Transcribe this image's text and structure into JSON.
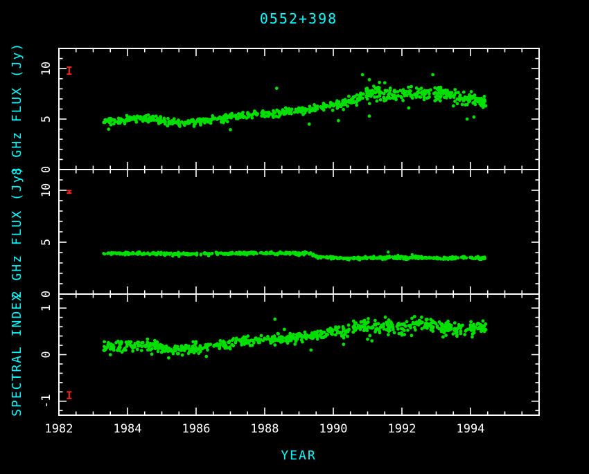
{
  "title": "0552+398",
  "x_axis": {
    "label": "YEAR",
    "lim": [
      1982,
      1996
    ],
    "major_ticks": [
      1982,
      1984,
      1986,
      1988,
      1990,
      1992,
      1994
    ],
    "minor_step": 0.5
  },
  "colors": {
    "background": "#000000",
    "frame": "#ffffff",
    "tick_text": "#ffffff",
    "axis_label": "#00ffff",
    "point": "#00e000",
    "error_bar": "#ff2222"
  },
  "chart_data": [
    {
      "id": "flux-8ghz",
      "type": "scatter",
      "title": "0552+398",
      "xlabel": "YEAR",
      "ylabel": "8 GHz FLUX (Jy)",
      "xlim": [
        1982,
        1996
      ],
      "ylim": [
        0,
        12
      ],
      "yticks": [
        0,
        5,
        10
      ],
      "minor_ytick_step": 1,
      "x_data_range": [
        1983.3,
        1994.45
      ],
      "n_points": 700,
      "point_radius": 2.4,
      "trend": [
        [
          1983.3,
          4.75
        ],
        [
          1983.8,
          4.9
        ],
        [
          1984.3,
          5.05
        ],
        [
          1984.8,
          5.05
        ],
        [
          1985.2,
          4.75
        ],
        [
          1985.7,
          4.65
        ],
        [
          1986.2,
          4.8
        ],
        [
          1986.7,
          5.0
        ],
        [
          1987.2,
          5.2
        ],
        [
          1987.7,
          5.45
        ],
        [
          1988.2,
          5.55
        ],
        [
          1988.7,
          5.7
        ],
        [
          1989.2,
          5.95
        ],
        [
          1989.7,
          6.2
        ],
        [
          1990.2,
          6.5
        ],
        [
          1990.6,
          6.9
        ],
        [
          1990.95,
          7.5
        ],
        [
          1991.3,
          7.6
        ],
        [
          1991.8,
          7.35
        ],
        [
          1992.3,
          7.5
        ],
        [
          1992.8,
          7.55
        ],
        [
          1993.3,
          7.45
        ],
        [
          1993.7,
          7.15
        ],
        [
          1994.1,
          6.85
        ],
        [
          1994.45,
          6.6
        ]
      ],
      "scatter_sigma": [
        [
          1983.3,
          0.17
        ],
        [
          1989.5,
          0.2
        ],
        [
          1990.8,
          0.28
        ],
        [
          1991.2,
          0.38
        ],
        [
          1992.5,
          0.33
        ],
        [
          1994.45,
          0.28
        ]
      ],
      "outliers": [
        [
          1983.45,
          4.0
        ],
        [
          1987.0,
          3.95
        ],
        [
          1988.35,
          8.05
        ],
        [
          1989.3,
          4.5
        ],
        [
          1990.15,
          4.85
        ],
        [
          1990.85,
          9.4
        ],
        [
          1991.05,
          8.9
        ],
        [
          1991.5,
          8.6
        ],
        [
          1991.05,
          5.3
        ],
        [
          1992.9,
          9.4
        ],
        [
          1993.9,
          5.0
        ],
        [
          1994.1,
          5.2
        ],
        [
          1992.2,
          6.1
        ],
        [
          1993.5,
          6.3
        ]
      ],
      "error_bar": {
        "x": 1982.3,
        "y": 9.8,
        "err": 0.35
      }
    },
    {
      "id": "flux-2ghz",
      "type": "scatter",
      "ylabel": "2 GHz FLUX (Jy)",
      "xlim": [
        1982,
        1996
      ],
      "ylim": [
        0,
        12
      ],
      "yticks": [
        0,
        5,
        10
      ],
      "minor_ytick_step": 1,
      "x_data_range": [
        1983.3,
        1994.45
      ],
      "n_points": 700,
      "point_radius": 2.2,
      "trend": [
        [
          1983.3,
          3.95
        ],
        [
          1984.5,
          3.9
        ],
        [
          1985.5,
          3.85
        ],
        [
          1986.5,
          3.9
        ],
        [
          1987.5,
          3.92
        ],
        [
          1988.5,
          3.95
        ],
        [
          1989.3,
          3.9
        ],
        [
          1989.55,
          3.6
        ],
        [
          1990.0,
          3.5
        ],
        [
          1990.5,
          3.42
        ],
        [
          1991.2,
          3.5
        ],
        [
          1991.8,
          3.55
        ],
        [
          1992.5,
          3.52
        ],
        [
          1993.2,
          3.45
        ],
        [
          1993.8,
          3.5
        ],
        [
          1994.45,
          3.45
        ]
      ],
      "scatter_sigma": [
        [
          1983.3,
          0.06
        ],
        [
          1994.45,
          0.07
        ]
      ],
      "outliers": [
        [
          1985.5,
          3.62
        ],
        [
          1989.0,
          3.7
        ],
        [
          1991.6,
          4.05
        ],
        [
          1992.3,
          3.8
        ]
      ],
      "error_bar": {
        "x": 1982.3,
        "y": 9.85,
        "err": 0.12
      }
    },
    {
      "id": "spectral-index",
      "type": "scatter",
      "ylabel": "SPECTRAL INDEX",
      "xlim": [
        1982,
        1996
      ],
      "ylim": [
        -1.3,
        1.3
      ],
      "yticks": [
        -1,
        0,
        1
      ],
      "minor_ytick_step": 0.2,
      "x_data_range": [
        1983.3,
        1994.45
      ],
      "n_points": 700,
      "point_radius": 2.4,
      "trend": [
        [
          1983.3,
          0.15
        ],
        [
          1984.0,
          0.2
        ],
        [
          1984.6,
          0.22
        ],
        [
          1985.2,
          0.12
        ],
        [
          1985.8,
          0.13
        ],
        [
          1986.4,
          0.18
        ],
        [
          1987.0,
          0.24
        ],
        [
          1987.6,
          0.3
        ],
        [
          1988.2,
          0.33
        ],
        [
          1988.8,
          0.36
        ],
        [
          1989.4,
          0.42
        ],
        [
          1990.0,
          0.5
        ],
        [
          1990.5,
          0.55
        ],
        [
          1990.95,
          0.63
        ],
        [
          1991.4,
          0.6
        ],
        [
          1992.0,
          0.62
        ],
        [
          1992.6,
          0.64
        ],
        [
          1993.2,
          0.6
        ],
        [
          1993.8,
          0.57
        ],
        [
          1994.45,
          0.55
        ]
      ],
      "scatter_sigma": [
        [
          1983.3,
          0.055
        ],
        [
          1990.0,
          0.06
        ],
        [
          1991.0,
          0.08
        ],
        [
          1994.45,
          0.07
        ]
      ],
      "outliers": [
        [
          1983.5,
          0.0
        ],
        [
          1985.2,
          -0.07
        ],
        [
          1986.3,
          -0.04
        ],
        [
          1988.3,
          0.76
        ],
        [
          1989.35,
          0.1
        ],
        [
          1990.3,
          0.22
        ],
        [
          1991.0,
          0.33
        ],
        [
          1992.0,
          0.42
        ],
        [
          1993.2,
          0.38
        ],
        [
          1994.05,
          0.38
        ]
      ],
      "error_bar": {
        "x": 1982.3,
        "y": -0.87,
        "err": 0.07
      }
    }
  ]
}
